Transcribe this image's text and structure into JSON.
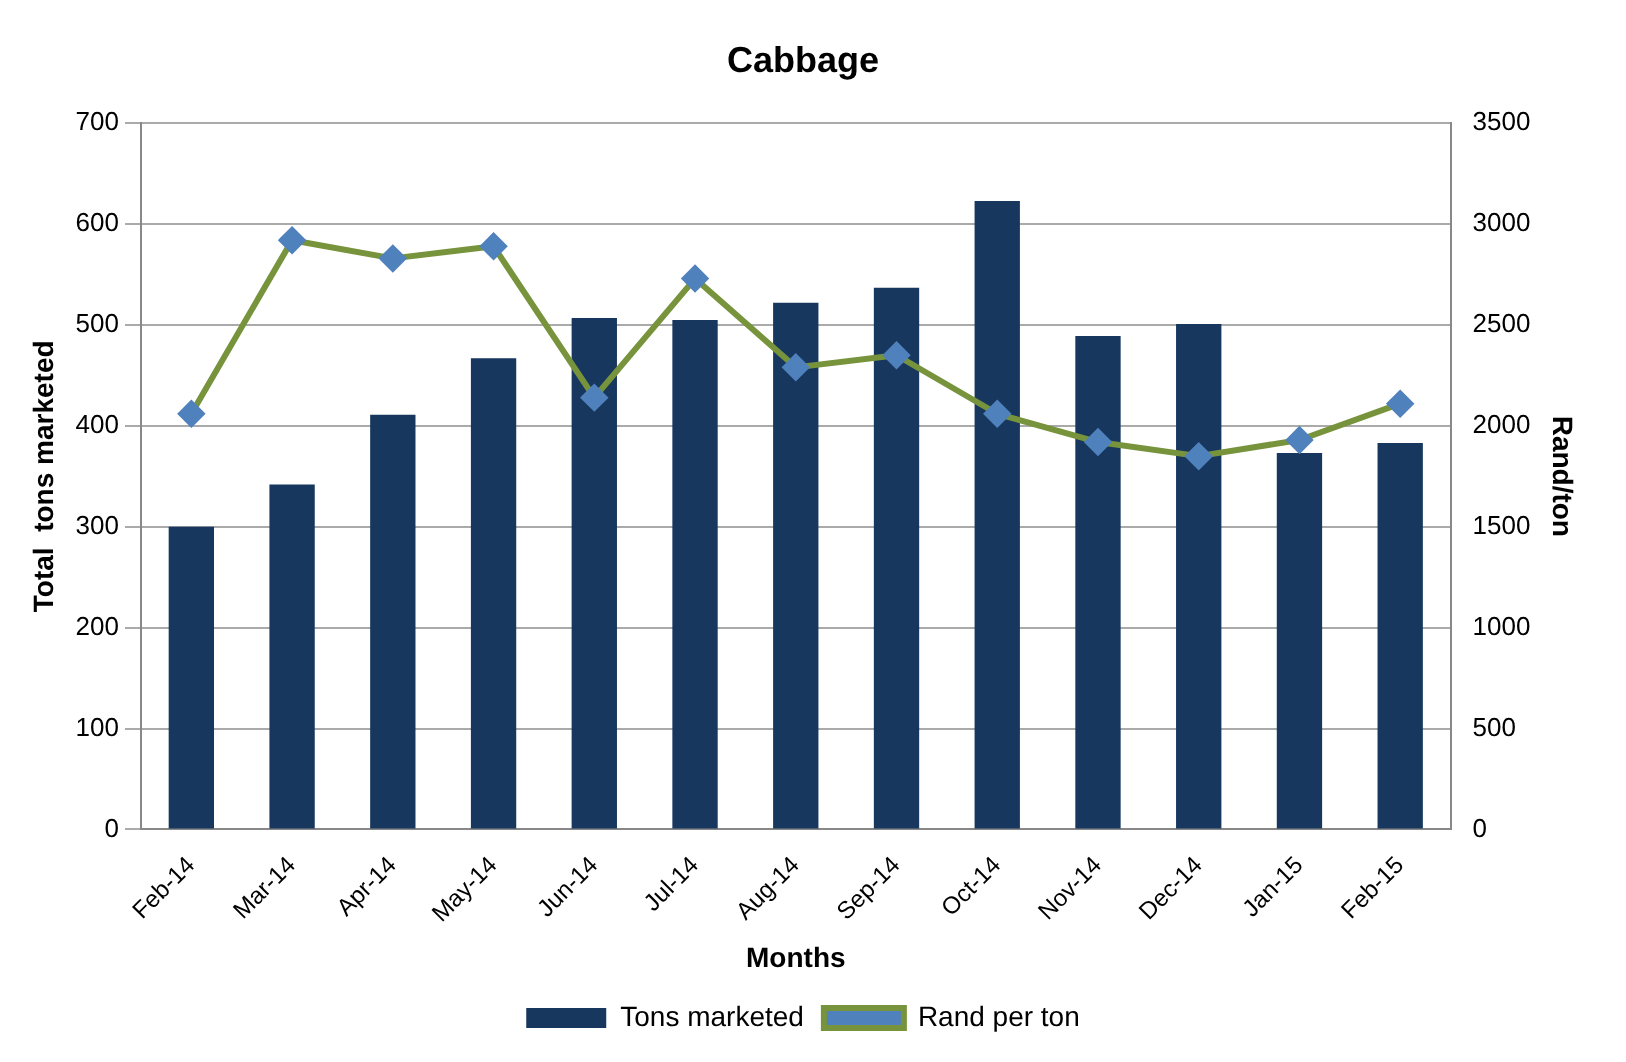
{
  "chart_data": {
    "type": "bar",
    "title": "Cabbage",
    "xlabel": "Months",
    "ylabel": "Total  tons marketed",
    "y2label": "Rand/ton",
    "categories": [
      "Feb-14",
      "Mar-14",
      "Apr-14",
      "May-14",
      "Jun-14",
      "Jul-14",
      "Aug-14",
      "Sep-14",
      "Oct-14",
      "Nov-14",
      "Dec-14",
      "Jan-15",
      "Feb-15"
    ],
    "series": [
      {
        "name": "Tons marketed",
        "color": "#17375e",
        "values": [
          300,
          342,
          411,
          467,
          507,
          505,
          522,
          537,
          623,
          489,
          501,
          373,
          383
        ]
      },
      {
        "name": "Rand per ton",
        "type": "line",
        "axis": "y2",
        "color": "#77933c",
        "marker": "diamond",
        "values": [
          2060,
          2920,
          2830,
          2890,
          2140,
          2730,
          2290,
          2350,
          2060,
          1920,
          1850,
          1930,
          2110
        ]
      }
    ],
    "ylim": [
      0,
      700
    ],
    "yticks": [
      0,
      100,
      200,
      300,
      400,
      500,
      600,
      700
    ],
    "y2lim": [
      0,
      3500
    ],
    "y2ticks": [
      0,
      500,
      1000,
      1500,
      2000,
      2500,
      3000,
      3500
    ],
    "grid": "y",
    "legend": "bottom"
  }
}
